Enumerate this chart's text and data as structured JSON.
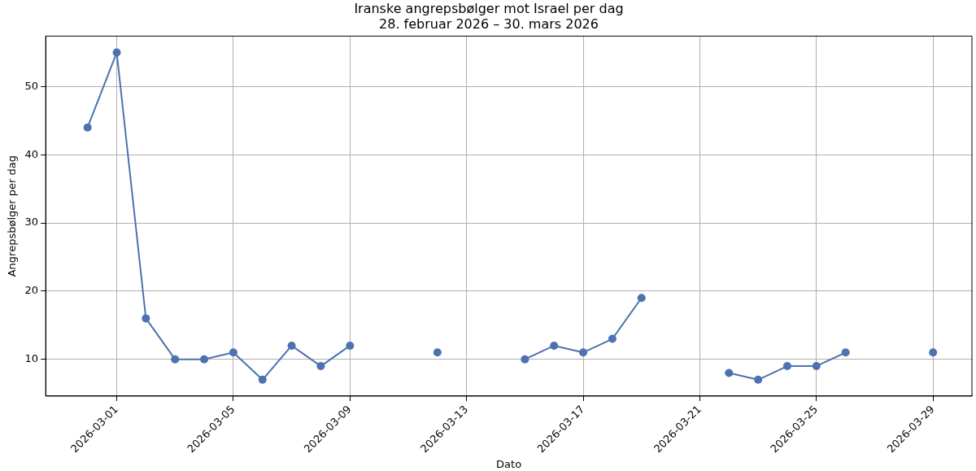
{
  "chart_data": {
    "type": "line",
    "title": "Iranske angrepsbølger mot Israel per dag",
    "subtitle": "28. februar 2026 – 30. mars 2026",
    "xlabel": "Dato",
    "ylabel": "Angrepsbølger per dag",
    "x": [
      "2026-02-28",
      "2026-03-01",
      "2026-03-02",
      "2026-03-03",
      "2026-03-04",
      "2026-03-05",
      "2026-03-06",
      "2026-03-07",
      "2026-03-08",
      "2026-03-09",
      "2026-03-10",
      "2026-03-11",
      "2026-03-12",
      "2026-03-13",
      "2026-03-14",
      "2026-03-15",
      "2026-03-16",
      "2026-03-17",
      "2026-03-18",
      "2026-03-19",
      "2026-03-20",
      "2026-03-21",
      "2026-03-22",
      "2026-03-23",
      "2026-03-24",
      "2026-03-25",
      "2026-03-26",
      "2026-03-27",
      "2026-03-28",
      "2026-03-29"
    ],
    "series": [
      {
        "color": "#4c72b0",
        "values": [
          44,
          55,
          16,
          10,
          10,
          11,
          7,
          12,
          9,
          12,
          null,
          null,
          11,
          null,
          null,
          10,
          12,
          11,
          13,
          19,
          null,
          null,
          8,
          7,
          9,
          9,
          11,
          null,
          null,
          11
        ]
      }
    ],
    "xlim": [
      "2026-02-26T13:30",
      "2026-03-30T08:00"
    ],
    "xticks": [
      "2026-03-01",
      "2026-03-05",
      "2026-03-09",
      "2026-03-13",
      "2026-03-17",
      "2026-03-21",
      "2026-03-25",
      "2026-03-29"
    ],
    "ylim": [
      4.6,
      57.4
    ],
    "yticks": [
      10,
      20,
      30,
      40,
      50
    ],
    "grid": true,
    "marker": "circle",
    "line_style": "solid",
    "legend": false
  }
}
